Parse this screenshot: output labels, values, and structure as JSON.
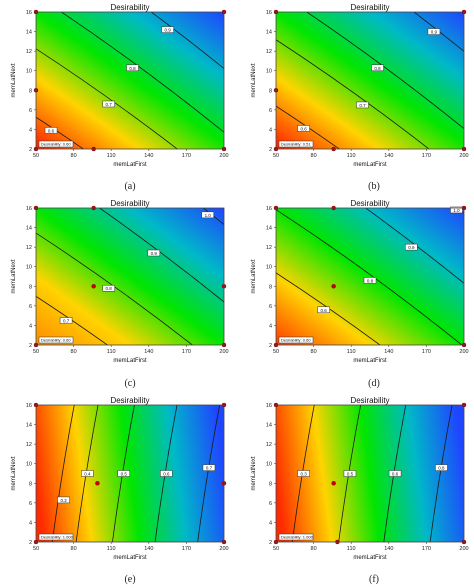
{
  "figure": {
    "subfigure_labels": [
      "(a)",
      "(b)",
      "(c)",
      "(d)",
      "(e)",
      "(f)"
    ]
  },
  "chart_data": [
    {
      "type": "heatmap",
      "title": "Desirability",
      "xlabel": "memLatFirst",
      "ylabel": "memLatNext",
      "x_ticks": [
        50,
        80,
        110,
        140,
        170,
        200
      ],
      "y_ticks": [
        2,
        4,
        6,
        8,
        10,
        12,
        14,
        16
      ],
      "xlim": [
        50,
        200
      ],
      "ylim": [
        2,
        16
      ],
      "colormap": [
        "#ff2b00",
        "#ffd400",
        "#00e600",
        "#00b8c8",
        "#1f46ff"
      ],
      "contour_levels": [
        {
          "label": "0.6",
          "x": 62,
          "y": 3.9
        },
        {
          "label": "0.7",
          "x": 108,
          "y": 6.6
        },
        {
          "label": "0.8",
          "x": 127,
          "y": 10.3
        },
        {
          "label": "0.9",
          "x": 155,
          "y": 14.2
        }
      ],
      "design_points": [
        {
          "x": 50,
          "y": 16
        },
        {
          "x": 200,
          "y": 16
        },
        {
          "x": 50,
          "y": 2
        },
        {
          "x": 200,
          "y": 2
        },
        {
          "x": 50,
          "y": 8
        },
        {
          "x": 96,
          "y": 2
        }
      ],
      "prediction_label": "Desirability: 0.60"
    },
    {
      "type": "heatmap",
      "title": "Desirability",
      "xlabel": "memLatFirst",
      "ylabel": "memLatNext",
      "x_ticks": [
        50,
        80,
        110,
        140,
        170,
        200
      ],
      "y_ticks": [
        2,
        4,
        6,
        8,
        10,
        12,
        14,
        16
      ],
      "xlim": [
        50,
        200
      ],
      "ylim": [
        2,
        16
      ],
      "colormap": [
        "#ff2b00",
        "#ffd400",
        "#00e600",
        "#00b8c8",
        "#1f46ff"
      ],
      "contour_levels": [
        {
          "label": "0.6",
          "x": 72,
          "y": 4.1
        },
        {
          "label": "0.7",
          "x": 119,
          "y": 6.5
        },
        {
          "label": "0.8",
          "x": 131,
          "y": 10.3
        },
        {
          "label": "0.9",
          "x": 176,
          "y": 14.0
        }
      ],
      "design_points": [
        {
          "x": 50,
          "y": 16
        },
        {
          "x": 200,
          "y": 16
        },
        {
          "x": 50,
          "y": 2
        },
        {
          "x": 200,
          "y": 2
        },
        {
          "x": 50,
          "y": 8
        },
        {
          "x": 96,
          "y": 2
        }
      ],
      "prediction_label": "Desirability: 0.51"
    },
    {
      "type": "heatmap",
      "title": "Desirability",
      "xlabel": "memLatFirst",
      "ylabel": "memLatNext",
      "x_ticks": [
        50,
        80,
        110,
        140,
        170,
        200
      ],
      "y_ticks": [
        2,
        4,
        6,
        8,
        10,
        12,
        14,
        16
      ],
      "xlim": [
        50,
        200
      ],
      "ylim": [
        2,
        16
      ],
      "colormap": [
        "#ff8a00",
        "#ffd400",
        "#00e600",
        "#00b8c8",
        "#1f46ff"
      ],
      "contour_levels": [
        {
          "label": "0.7",
          "x": 74,
          "y": 4.5
        },
        {
          "label": "0.8",
          "x": 108,
          "y": 7.8
        },
        {
          "label": "0.9",
          "x": 144,
          "y": 11.4
        },
        {
          "label": "1.0",
          "x": 187,
          "y": 15.3
        }
      ],
      "design_points": [
        {
          "x": 50,
          "y": 16
        },
        {
          "x": 96,
          "y": 16
        },
        {
          "x": 50,
          "y": 2
        },
        {
          "x": 200,
          "y": 2
        },
        {
          "x": 96,
          "y": 8
        },
        {
          "x": 200,
          "y": 8
        }
      ],
      "prediction_label": "Desirability: 0.60"
    },
    {
      "type": "heatmap",
      "title": "Desirability",
      "xlabel": "memLatFirst",
      "ylabel": "memLatNext",
      "x_ticks": [
        50,
        80,
        110,
        140,
        170,
        200
      ],
      "y_ticks": [
        2,
        4,
        6,
        8,
        10,
        12,
        14,
        16
      ],
      "xlim": [
        50,
        200
      ],
      "ylim": [
        2,
        16
      ],
      "colormap": [
        "#ff3a00",
        "#ffd400",
        "#00e600",
        "#00b8c8",
        "#1f46ff"
      ],
      "contour_levels": [
        {
          "label": "0.6",
          "x": 88,
          "y": 5.6
        },
        {
          "label": "0.8",
          "x": 125,
          "y": 8.6
        },
        {
          "label": "0.9",
          "x": 158,
          "y": 12.0
        },
        {
          "label": "1.0",
          "x": 194,
          "y": 15.8
        }
      ],
      "design_points": [
        {
          "x": 50,
          "y": 16
        },
        {
          "x": 200,
          "y": 16
        },
        {
          "x": 50,
          "y": 2
        },
        {
          "x": 200,
          "y": 2
        },
        {
          "x": 96,
          "y": 8
        },
        {
          "x": 96,
          "y": 16
        }
      ],
      "prediction_label": "Desirability: 0.60"
    },
    {
      "type": "heatmap",
      "title": "Desirability",
      "xlabel": "memLatFirst",
      "ylabel": "memLatNext",
      "x_ticks": [
        50,
        80,
        110,
        140,
        170,
        200
      ],
      "y_ticks": [
        2,
        4,
        6,
        8,
        10,
        12,
        14,
        16
      ],
      "xlim": [
        50,
        200
      ],
      "ylim": [
        2,
        16
      ],
      "colormap": [
        "#ff2b00",
        "#ffd400",
        "#00e600",
        "#00b8c8",
        "#1f46ff"
      ],
      "contour_levels": [
        {
          "label": "0.2",
          "x": 72,
          "y": 6.3
        },
        {
          "label": "0.4",
          "x": 91,
          "y": 9.0
        },
        {
          "label": "0.5",
          "x": 120,
          "y": 9.0
        },
        {
          "label": "0.6",
          "x": 154,
          "y": 9.0
        },
        {
          "label": "0.7",
          "x": 188,
          "y": 9.6
        }
      ],
      "design_points": [
        {
          "x": 50,
          "y": 16
        },
        {
          "x": 200,
          "y": 16
        },
        {
          "x": 50,
          "y": 2
        },
        {
          "x": 200,
          "y": 2
        },
        {
          "x": 99,
          "y": 8
        },
        {
          "x": 200,
          "y": 8
        }
      ],
      "prediction_label": "Desirability: 1.000"
    },
    {
      "type": "heatmap",
      "title": "Desirability",
      "xlabel": "memLatFirst",
      "ylabel": "memLatNext",
      "x_ticks": [
        50,
        80,
        110,
        140,
        170,
        200
      ],
      "y_ticks": [
        2,
        4,
        6,
        8,
        10,
        12,
        14,
        16
      ],
      "xlim": [
        50,
        200
      ],
      "ylim": [
        2,
        16
      ],
      "colormap": [
        "#ff2b00",
        "#ffd400",
        "#00e600",
        "#00b8c8",
        "#1f46ff"
      ],
      "contour_levels": [
        {
          "label": "0.3",
          "x": 72,
          "y": 9.0
        },
        {
          "label": "0.5",
          "x": 109,
          "y": 9.0
        },
        {
          "label": "0.6",
          "x": 145,
          "y": 9.0
        },
        {
          "label": "0.8",
          "x": 182,
          "y": 9.6
        }
      ],
      "design_points": [
        {
          "x": 50,
          "y": 16
        },
        {
          "x": 200,
          "y": 16
        },
        {
          "x": 50,
          "y": 2
        },
        {
          "x": 200,
          "y": 2
        },
        {
          "x": 96,
          "y": 8
        },
        {
          "x": 99,
          "y": 2
        }
      ],
      "prediction_label": "Desirability: 1.000"
    }
  ]
}
